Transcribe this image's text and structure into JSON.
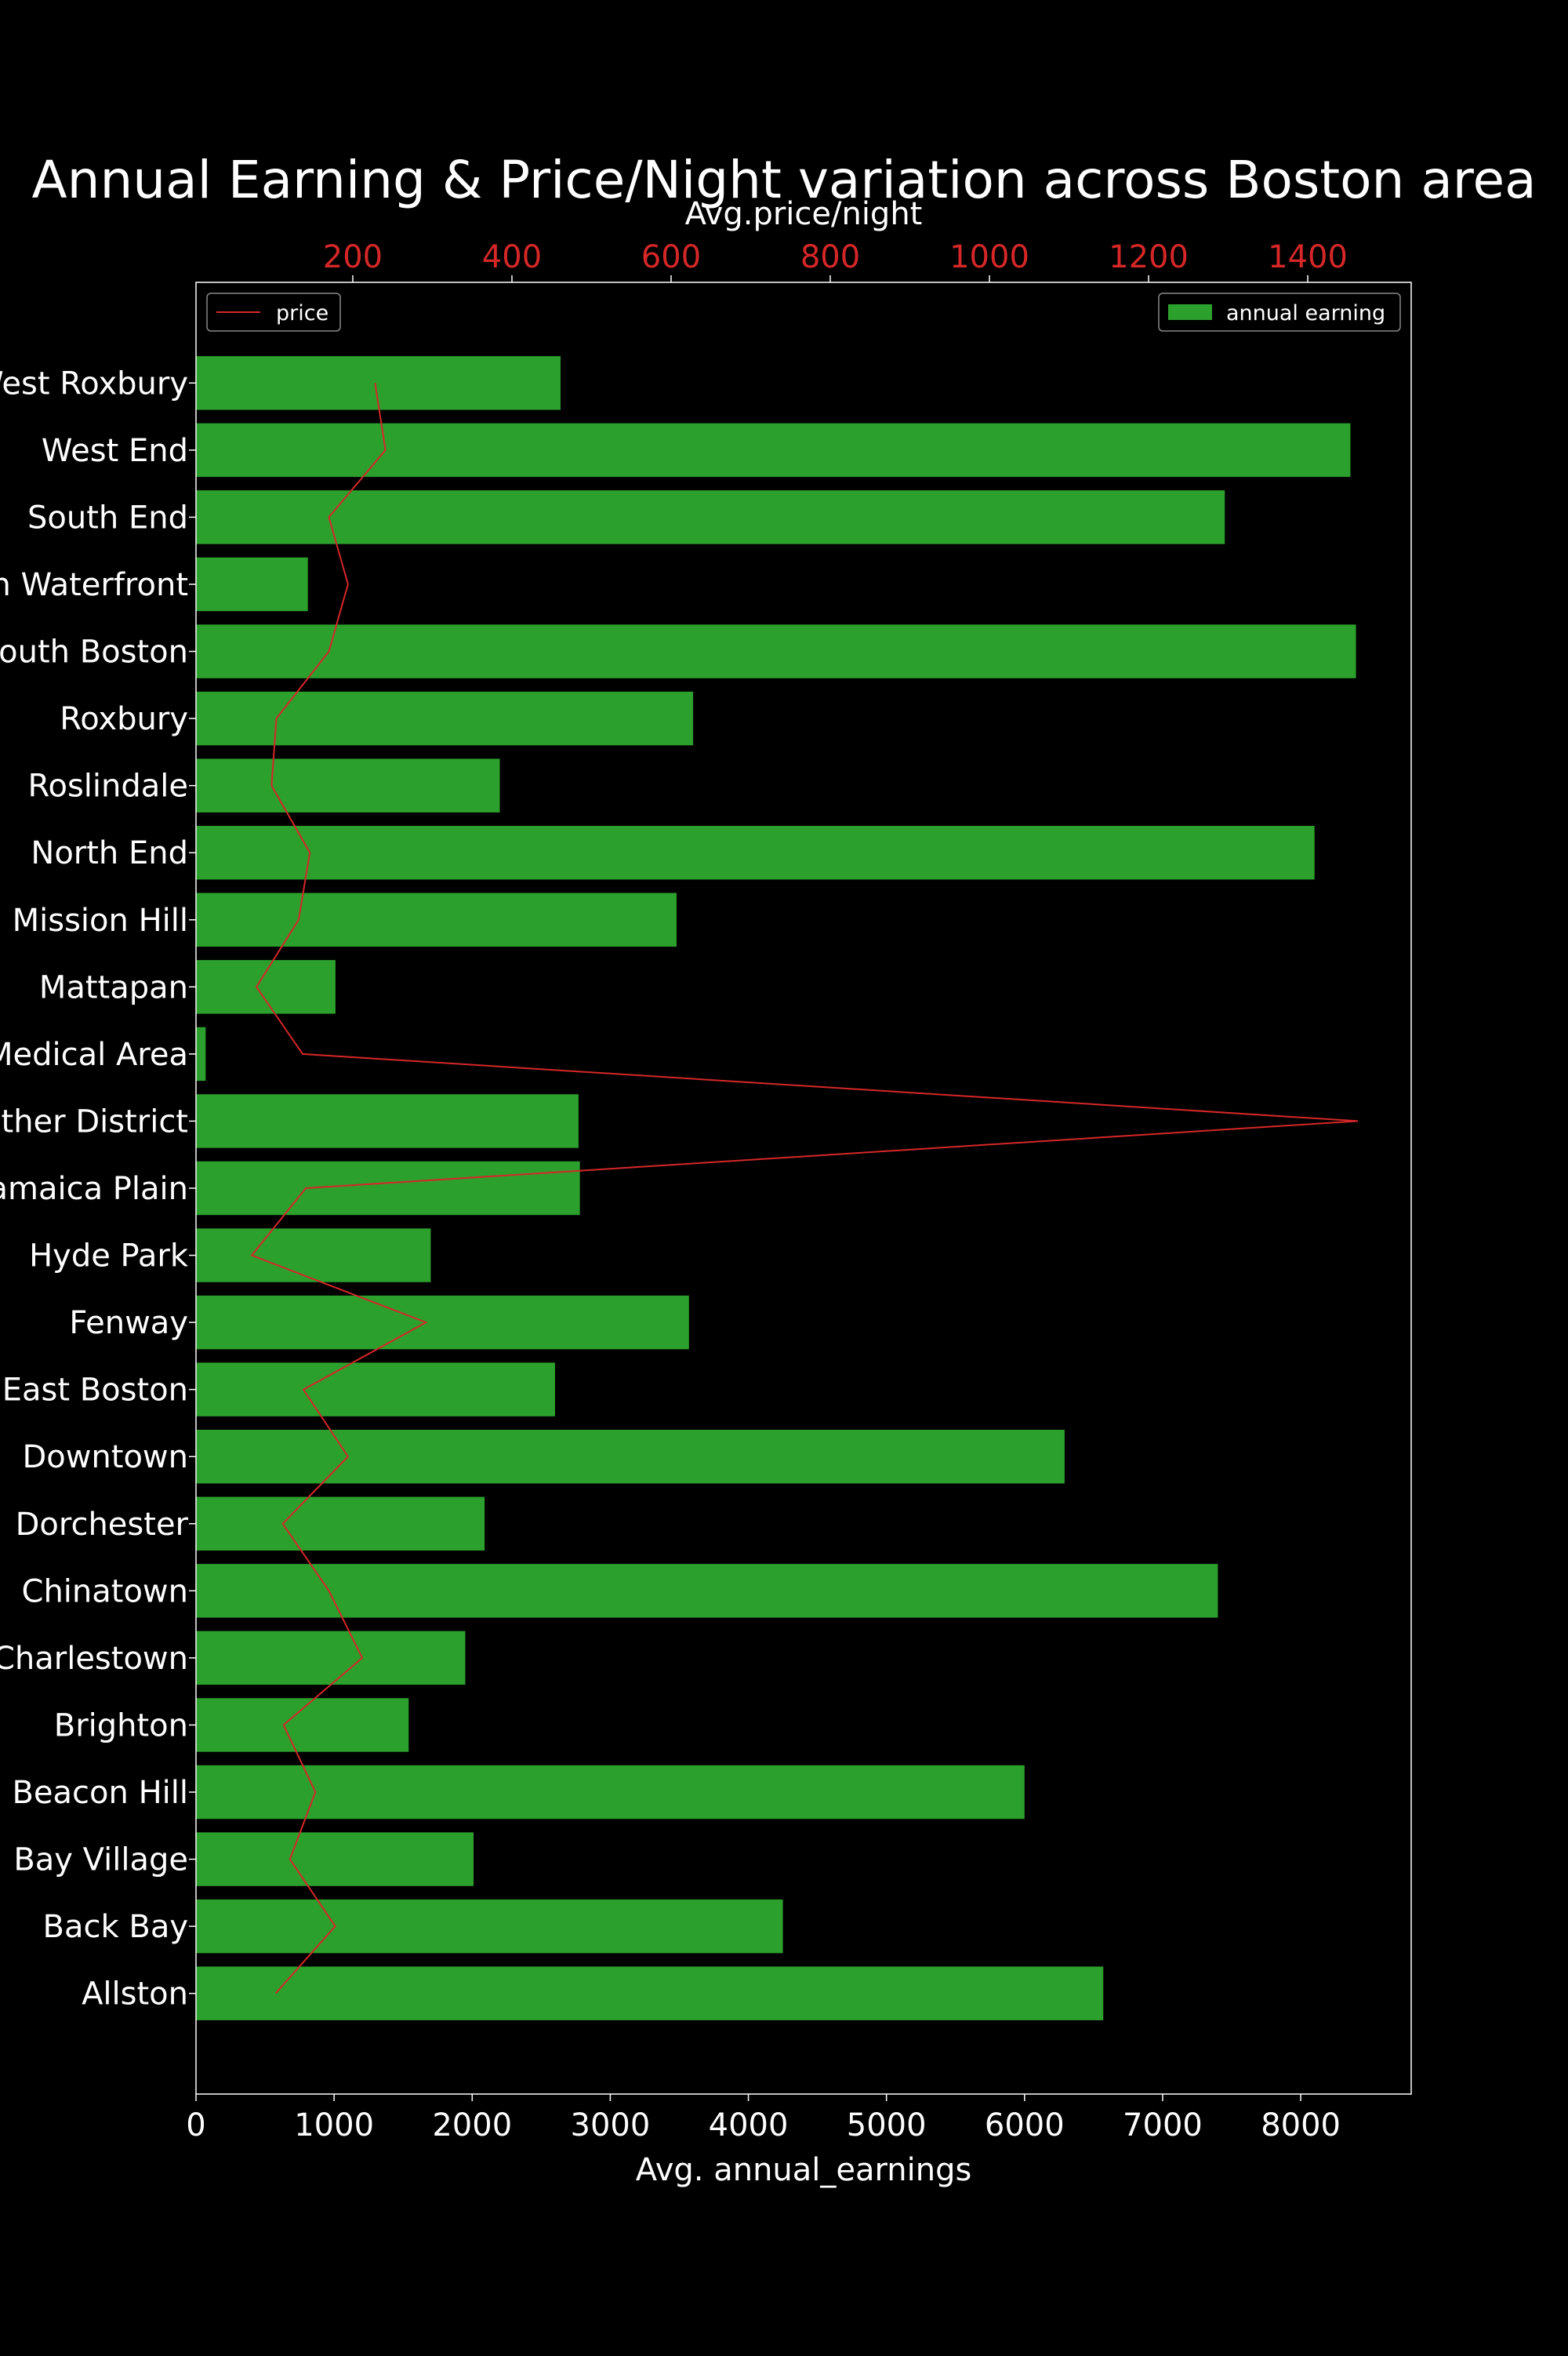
{
  "chart_data": {
    "type": "bar",
    "orientation": "horizontal",
    "title": "Annual Earning & Price/Night variation across Boston area",
    "xlabel": "Avg. annual_earnings",
    "x2label": "Avg.price/night",
    "ylabel": "",
    "xlim": [
      0,
      8800
    ],
    "x2lim": [
      3,
      1530
    ],
    "xticks": [
      0,
      1000,
      2000,
      3000,
      4000,
      5000,
      6000,
      7000,
      8000
    ],
    "x2ticks": [
      200,
      400,
      600,
      800,
      1000,
      1200,
      1400
    ],
    "categories": [
      "Allston",
      "Back Bay",
      "Bay Village",
      "Beacon Hill",
      "Brighton",
      "Charlestown",
      "Chinatown",
      "Dorchester",
      "Downtown",
      "East Boston",
      "Fenway",
      "Hyde Park",
      "Jamaica Plain",
      "Leather District",
      "Longwood Medical Area",
      "Mattapan",
      "Mission Hill",
      "North End",
      "Roslindale",
      "Roxbury",
      "South Boston",
      "South Boston Waterfront",
      "South End",
      "West End",
      "West Roxbury"
    ],
    "series": [
      {
        "name": "annual earning",
        "axis": "bottom",
        "color": "#2ca02c",
        "values": [
          6570,
          4250,
          2010,
          6000,
          1540,
          1950,
          7400,
          2090,
          6290,
          2600,
          3570,
          1700,
          2780,
          2770,
          70,
          1010,
          3480,
          8100,
          2200,
          3600,
          8400,
          810,
          7450,
          8360,
          2640
        ]
      },
      {
        "name": "price",
        "axis": "top",
        "color": "#d62728",
        "values": [
          103,
          178,
          121,
          153,
          113,
          212,
          170,
          112,
          194,
          138,
          292,
          73,
          141,
          1463,
          137,
          79,
          132,
          146,
          98,
          104,
          170,
          194,
          170,
          241,
          228
        ]
      }
    ],
    "legend": [
      {
        "label": "price",
        "placement": "top-left"
      },
      {
        "label": "annual earning",
        "placement": "top-right"
      }
    ],
    "colors": {
      "background": "#000000",
      "text": "#ffffff",
      "top_ticks": "#d62728",
      "frame": "#ffffff"
    }
  }
}
